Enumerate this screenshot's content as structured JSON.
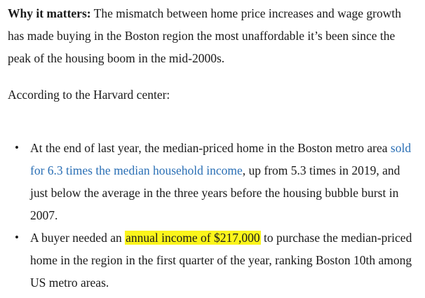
{
  "paragraph1": {
    "lead": "Why it matters:",
    "text": " The mismatch between home price increases and wage growth has made buying in the Boston region the most unaffordable it’s been since the peak of the housing boom in the mid-2000s."
  },
  "paragraph2": {
    "text": "According to the Harvard center:"
  },
  "bullets": [
    {
      "before": "At the end of last year, the median-priced home in the Boston metro area ",
      "link": "sold for 6.3 times the median household income",
      "after": ", up from 5.3 times in 2019, and just below the average in the three years before the housing bubble burst in 2007."
    },
    {
      "before": "A buyer needed an ",
      "highlight": "annual income of $217,000",
      "after": " to purchase the median-priced home in the region in the first quarter of the year, ranking Boston 10th among US metro areas."
    }
  ],
  "bullet_glyph": "•",
  "colors": {
    "text": "#1a1a1a",
    "link": "#2a6fb5",
    "highlight": "#fbf51c"
  }
}
